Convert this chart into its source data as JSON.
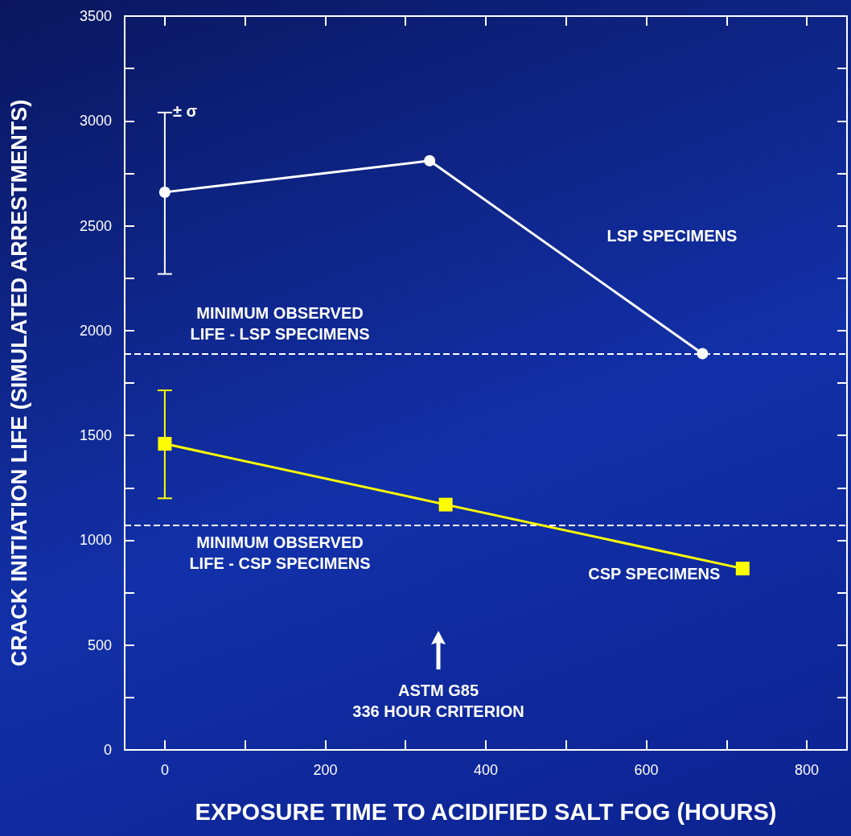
{
  "chart_data": {
    "type": "line",
    "xlabel": "EXPOSURE TIME TO ACIDIFIED SALT FOG (HOURS)",
    "ylabel": "CRACK INITIATION LIFE (SIMULATED ARRESTMENTS)",
    "xlim": [
      -50,
      850
    ],
    "xticks": [
      0,
      {
        "value": 100,
        "label": null
      },
      200,
      {
        "value": 300,
        "label": null
      },
      400,
      {
        "value": 500,
        "label": null
      },
      600,
      {
        "value": 700,
        "label": null
      },
      800
    ],
    "ylim": [
      0,
      3500
    ],
    "yticks": [
      0,
      {
        "value": 250,
        "label": null
      },
      500,
      {
        "value": 750,
        "label": null
      },
      1000,
      {
        "value": 1250,
        "label": null
      },
      1500,
      {
        "value": 1750,
        "label": null
      },
      2000,
      {
        "value": 2250,
        "label": null
      },
      2500,
      {
        "value": 2750,
        "label": null
      },
      3000,
      {
        "value": 3250,
        "label": null
      },
      3500
    ],
    "grid": false,
    "legend": false,
    "series": [
      {
        "name": "LSP SPECIMENS",
        "color": "#ffffff",
        "marker": "circle",
        "x": [
          0,
          330,
          670
        ],
        "values": [
          2660,
          2810,
          1890
        ],
        "errors": [
          [
            2270,
            3040
          ],
          null,
          null
        ]
      },
      {
        "name": "CSP SPECIMENS",
        "color": "#ffff00",
        "marker": "square",
        "x": [
          0,
          350,
          720
        ],
        "values": [
          1460,
          1170,
          865
        ],
        "errors": [
          [
            1200,
            1715
          ],
          null,
          null
        ]
      }
    ],
    "ref_lines": [
      {
        "axis": "y",
        "value": 1890,
        "label": "MINIMUM OBSERVED\nLIFE - LSP SPECIMENS",
        "color": "#ffffff",
        "line_style": "dashed"
      },
      {
        "axis": "y",
        "value": 1070,
        "label": "MINIMUM OBSERVED\nLIFE - CSP SPECIMENS",
        "color": "#ffffff",
        "line_style": "dashed"
      }
    ],
    "annotations": [
      {
        "text": "± σ",
        "x": 0,
        "y": 3040
      },
      "ASTM G85\n336 HOUR CRITERION"
    ]
  }
}
